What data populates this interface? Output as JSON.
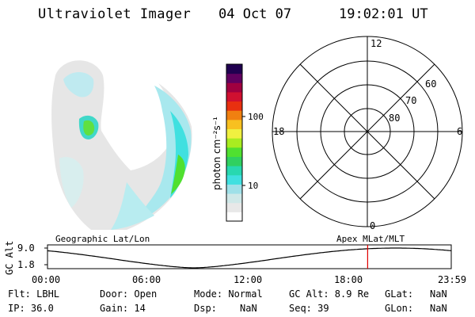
{
  "header": {
    "instrument": "Ultraviolet Imager",
    "date": "04 Oct 07",
    "time": "19:02:01 UT"
  },
  "colorbar": {
    "label": "photon cm⁻²s⁻¹",
    "ticks": [
      "100",
      "10"
    ],
    "colors": [
      "#ffffff",
      "#e8e8e8",
      "#cfe8e8",
      "#9fe0e8",
      "#40e0e0",
      "#28d8b0",
      "#30d060",
      "#50e030",
      "#a8ec20",
      "#f0f040",
      "#f8c020",
      "#f08010",
      "#e83010",
      "#d01030",
      "#a00040",
      "#600060",
      "#200050"
    ]
  },
  "polar_plot": {
    "mlt_labels": {
      "top": "12",
      "left": "18",
      "right": "6",
      "bottom": "0"
    },
    "lat_labels": [
      "60",
      "70",
      "80"
    ]
  },
  "altitude_panel": {
    "left_label": "Geographic Lat/Lon",
    "right_label": "Apex MLat/MLT",
    "y_axis_label": "GC Alt",
    "y_ticks": [
      "9.0",
      "1.8"
    ],
    "x_ticks": [
      "00:00",
      "06:00",
      "12:00",
      "18:00",
      "23:59"
    ],
    "current_time_marker_hour": 19.03
  },
  "info": {
    "row1": {
      "flt": "Flt: LBHL",
      "door": "Door: Open",
      "mode": "Mode: Normal",
      "gc_alt": "GC Alt: 8.9 Re",
      "glat_label": "GLat:",
      "glat_value": "NaN"
    },
    "row2": {
      "ip": "IP: 36.0",
      "gain": "Gain: 14",
      "dsp_label": "Dsp:",
      "dsp_value": "NaN",
      "seq": "Seq: 39",
      "glon_label": "GLon:",
      "glon_value": "NaN"
    }
  }
}
